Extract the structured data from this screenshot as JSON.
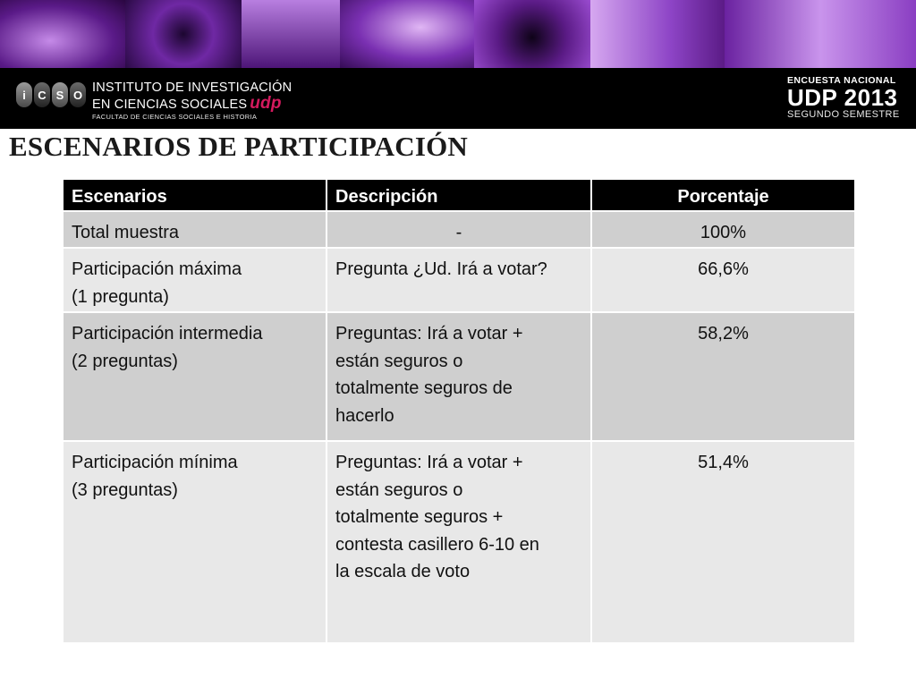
{
  "colors": {
    "banner_purple": "#7b2cb0",
    "udp_red": "#d51a5e",
    "header_black": "#000000",
    "row_dark": "#cfcfcf",
    "row_light": "#e8e8e8"
  },
  "logo": {
    "letters": [
      "i",
      "C",
      "S",
      "O"
    ],
    "line1": "INSTITUTO DE INVESTIGACIÓN",
    "line2": "EN CIENCIAS SOCIALES",
    "udp": "udp",
    "line3": "FACULTAD DE CIENCIAS SOCIALES E HISTORIA"
  },
  "survey": {
    "line1": "ENCUESTA NACIONAL",
    "line2": "UDP 2013",
    "line3": "SEGUNDO SEMESTRE"
  },
  "title": "ESCENARIOS DE PARTICIPACIÓN",
  "table": {
    "headers": [
      "Escenarios",
      "Descripción",
      "Porcentaje"
    ],
    "rows": [
      {
        "escenario": [
          "Total muestra"
        ],
        "descripcion": [
          "-"
        ],
        "porcentaje": "100%"
      },
      {
        "escenario": [
          "Participación máxima",
          "(1 pregunta)"
        ],
        "descripcion": [
          "Pregunta ¿Ud. Irá a votar?"
        ],
        "porcentaje": "66,6%"
      },
      {
        "escenario": [
          "Participación intermedia",
          "(2 preguntas)"
        ],
        "descripcion": [
          "Preguntas: Irá a votar +",
          "están seguros o",
          "totalmente seguros de",
          "hacerlo"
        ],
        "porcentaje": "58,2%"
      },
      {
        "escenario": [
          "Participación mínima",
          "(3 preguntas)"
        ],
        "descripcion": [
          "Preguntas: Irá a votar +",
          "están seguros o",
          "totalmente seguros +",
          "contesta casillero 6-10 en",
          "la escala de voto"
        ],
        "porcentaje": "51,4%"
      }
    ]
  }
}
